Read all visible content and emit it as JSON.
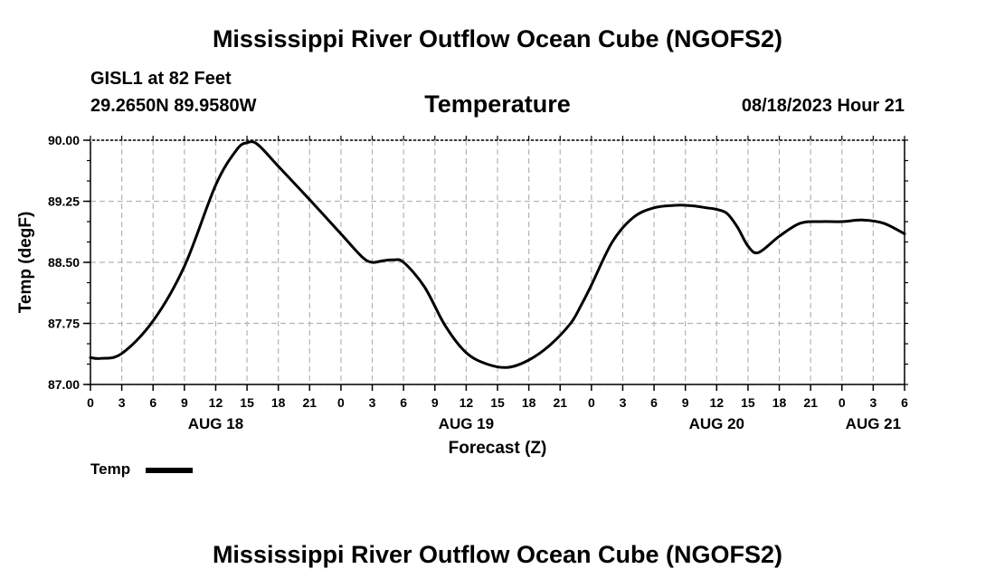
{
  "header": {
    "title": "Mississippi River Outflow Ocean Cube (NGOFS2)",
    "station": "GISL1 at 82 Feet",
    "coordinates": "29.2650N  89.9580W",
    "variable": "Temperature",
    "datetime": "08/18/2023 Hour 21"
  },
  "footer": {
    "title": "Mississippi River Outflow Ocean Cube (NGOFS2)"
  },
  "legend": {
    "label": "Temp"
  },
  "chart_data": {
    "type": "line",
    "title": "Temperature",
    "xlabel": "Forecast (Z)",
    "ylabel": "Temp (degF)",
    "xlim": [
      0,
      78
    ],
    "ylim": [
      87.0,
      90.0
    ],
    "grid": true,
    "legend_position": "bottom-left",
    "yticks": [
      "87.00",
      "87.75",
      "88.50",
      "89.25",
      "90.00"
    ],
    "xtick_labels": [
      "0",
      "3",
      "6",
      "9",
      "12",
      "15",
      "18",
      "21",
      "0",
      "3",
      "6",
      "9",
      "12",
      "15",
      "18",
      "21",
      "0",
      "3",
      "6",
      "9",
      "12",
      "15",
      "18",
      "21",
      "0",
      "3",
      "6"
    ],
    "day_labels": [
      {
        "label": "AUG 18",
        "hour": 12
      },
      {
        "label": "AUG 19",
        "hour": 36
      },
      {
        "label": "AUG 20",
        "hour": 60
      },
      {
        "label": "AUG 21",
        "hour": 75
      }
    ],
    "series": [
      {
        "name": "Temp",
        "x": [
          0,
          1,
          3,
          6,
          9,
          12,
          14,
          15,
          16,
          18,
          21,
          24,
          26,
          27,
          28,
          29,
          30,
          32,
          34,
          36,
          38,
          40,
          42,
          44,
          46,
          47,
          48,
          50,
          52,
          54,
          56,
          57,
          58,
          59,
          60,
          61,
          62,
          63,
          64,
          66,
          68,
          70,
          72,
          74,
          76,
          78
        ],
        "values": [
          87.33,
          87.32,
          87.38,
          87.78,
          88.45,
          89.45,
          89.88,
          89.97,
          89.95,
          89.68,
          89.27,
          88.85,
          88.57,
          88.5,
          88.52,
          88.53,
          88.5,
          88.2,
          87.72,
          87.39,
          87.25,
          87.21,
          87.3,
          87.48,
          87.75,
          87.97,
          88.22,
          88.75,
          89.05,
          89.17,
          89.2,
          89.2,
          89.19,
          89.17,
          89.15,
          89.1,
          88.93,
          88.7,
          88.62,
          88.82,
          88.98,
          89.0,
          89.0,
          89.02,
          88.98,
          88.85
        ]
      }
    ]
  }
}
